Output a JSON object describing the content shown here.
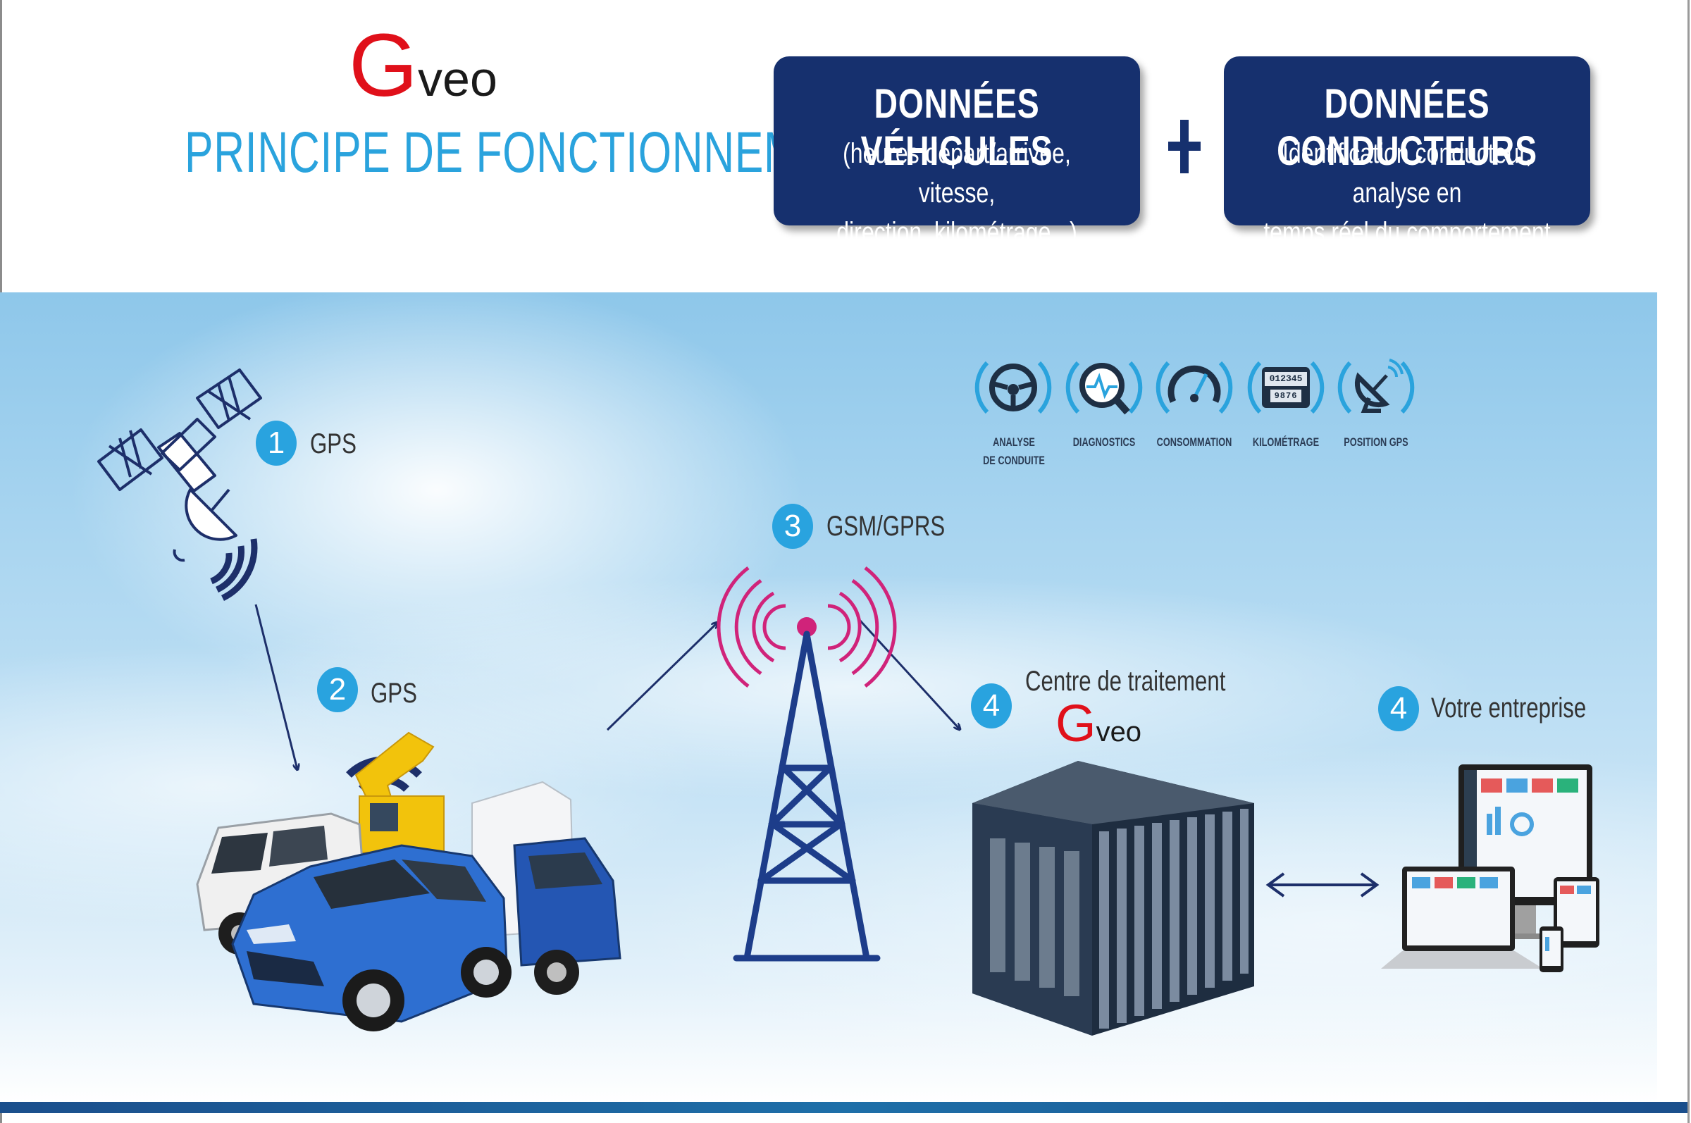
{
  "header": {
    "logo": {
      "initial": "G",
      "rest": "veo"
    },
    "title": "PRINCIPE DE FONCTIONNEMENT"
  },
  "boxes": [
    {
      "title": "DONNÉES VÉHICULES",
      "lines": [
        "(heures départ/arrivée, vitesse,",
        "direction, kilométrage...)"
      ]
    },
    {
      "title": "DONNÉES CONDUCTEURS",
      "lines": [
        "Identification conducteur, analyse en",
        "temps réel du comportement routier"
      ]
    }
  ],
  "features": [
    {
      "label_lines": [
        "ANALYSE",
        "DE CONDUITE"
      ],
      "icon": "steering-wheel-icon"
    },
    {
      "label_lines": [
        "DIAGNOSTICS"
      ],
      "icon": "diagnostics-icon"
    },
    {
      "label_lines": [
        "CONSOMMATION"
      ],
      "icon": "gauge-icon"
    },
    {
      "label_lines": [
        "KILOMÉTRAGE"
      ],
      "icon": "odometer-icon",
      "odometer_top": "012345",
      "odometer_bottom": "9876"
    },
    {
      "label_lines": [
        "POSITION GPS"
      ],
      "icon": "satellite-dish-icon"
    }
  ],
  "steps": [
    {
      "number": "1",
      "label": "GPS"
    },
    {
      "number": "2",
      "label": "GPS"
    },
    {
      "number": "3",
      "label": "GSM/GPRS"
    },
    {
      "number": "4",
      "label": "Centre de traitement"
    },
    {
      "number": "4",
      "label": "Votre entreprise"
    }
  ],
  "center_logo": {
    "initial": "G",
    "rest": "veo"
  },
  "colors": {
    "navy": "#16306e",
    "accent_blue": "#29a3df",
    "logo_red": "#e0101a",
    "signal_pink": "#d0237a"
  }
}
